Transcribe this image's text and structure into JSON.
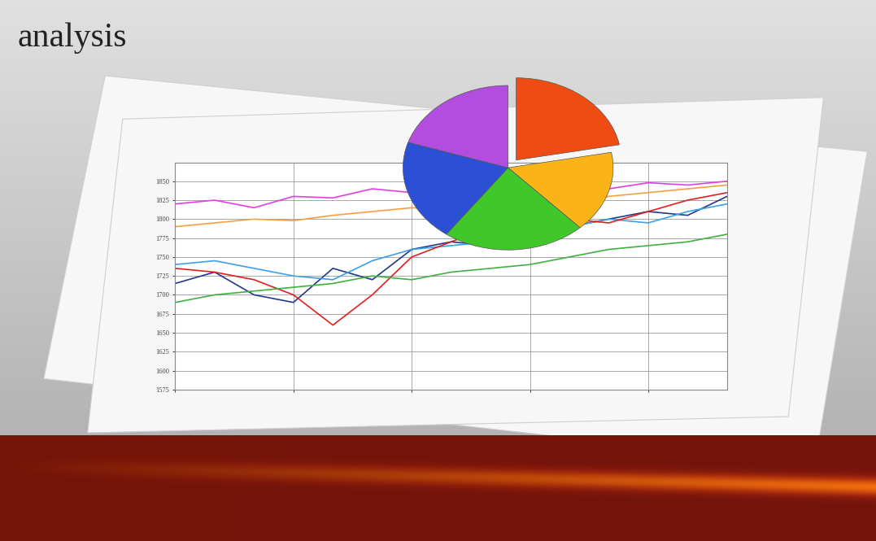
{
  "title": "analysis",
  "chart_data": [
    {
      "type": "pie",
      "values": [
        22,
        16,
        22,
        20,
        20
      ],
      "colors": [
        "#ef4c14",
        "#fbb417",
        "#40c82a",
        "#2b50d6",
        "#b24de0"
      ]
    },
    {
      "type": "line",
      "x": [
        1,
        2,
        3,
        4,
        5,
        6,
        7,
        8,
        9,
        10,
        11,
        12,
        13,
        14,
        15
      ],
      "xlim": [
        1,
        15
      ],
      "xticks": [
        1,
        4,
        7,
        10,
        13
      ],
      "ylim": [
        1575,
        1875
      ],
      "yticks": [
        1575,
        1600,
        1625,
        1650,
        1675,
        1700,
        1725,
        1750,
        1775,
        1800,
        1825,
        1850
      ],
      "grid": true,
      "tick_labels": "y",
      "series": [
        {
          "color": "#e040e0",
          "values": [
            1820,
            1825,
            1815,
            1830,
            1828,
            1840,
            1835,
            1822,
            1832,
            1838,
            1845,
            1840,
            1848,
            1845,
            1850
          ]
        },
        {
          "color": "#f5a040",
          "values": [
            1790,
            1795,
            1800,
            1798,
            1805,
            1810,
            1815,
            1812,
            1820,
            1825,
            1818,
            1830,
            1835,
            1840,
            1845
          ]
        },
        {
          "color": "#1f3a8a",
          "values": [
            1715,
            1730,
            1700,
            1690,
            1735,
            1720,
            1760,
            1770,
            1765,
            1780,
            1790,
            1800,
            1810,
            1805,
            1830
          ]
        },
        {
          "color": "#3aa0e8",
          "values": [
            1740,
            1745,
            1735,
            1725,
            1720,
            1745,
            1760,
            1765,
            1770,
            1775,
            1790,
            1800,
            1795,
            1810,
            1820
          ]
        },
        {
          "color": "#e02020",
          "values": [
            1735,
            1730,
            1720,
            1700,
            1660,
            1700,
            1750,
            1770,
            1790,
            1785,
            1800,
            1795,
            1810,
            1825,
            1835
          ]
        },
        {
          "color": "#40b040",
          "values": [
            1690,
            1700,
            1705,
            1710,
            1715,
            1725,
            1720,
            1730,
            1735,
            1740,
            1750,
            1760,
            1765,
            1770,
            1780
          ]
        }
      ]
    }
  ]
}
